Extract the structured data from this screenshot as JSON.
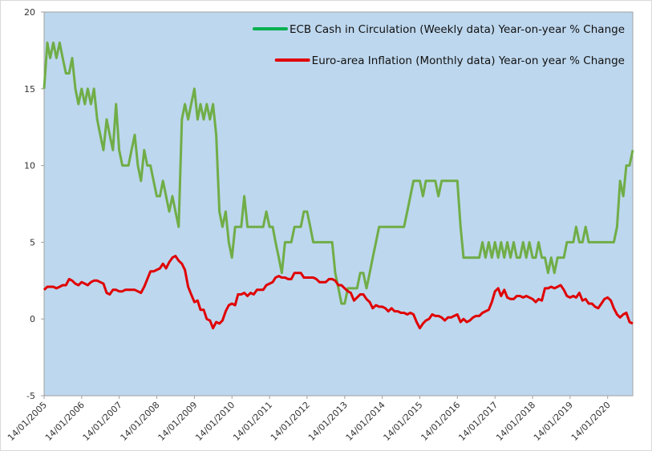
{
  "chart_data": {
    "type": "line",
    "x": [
      "2005-01",
      "2005-02",
      "2005-03",
      "2005-04",
      "2005-05",
      "2005-06",
      "2005-07",
      "2005-08",
      "2005-09",
      "2005-10",
      "2005-11",
      "2005-12",
      "2006-01",
      "2006-02",
      "2006-03",
      "2006-04",
      "2006-05",
      "2006-06",
      "2006-07",
      "2006-08",
      "2006-09",
      "2006-10",
      "2006-11",
      "2006-12",
      "2007-01",
      "2007-02",
      "2007-03",
      "2007-04",
      "2007-05",
      "2007-06",
      "2007-07",
      "2007-08",
      "2007-09",
      "2007-10",
      "2007-11",
      "2007-12",
      "2008-01",
      "2008-02",
      "2008-03",
      "2008-04",
      "2008-05",
      "2008-06",
      "2008-07",
      "2008-08",
      "2008-09",
      "2008-10",
      "2008-11",
      "2008-12",
      "2009-01",
      "2009-02",
      "2009-03",
      "2009-04",
      "2009-05",
      "2009-06",
      "2009-07",
      "2009-08",
      "2009-09",
      "2009-10",
      "2009-11",
      "2009-12",
      "2010-01",
      "2010-02",
      "2010-03",
      "2010-04",
      "2010-05",
      "2010-06",
      "2010-07",
      "2010-08",
      "2010-09",
      "2010-10",
      "2010-11",
      "2010-12",
      "2011-01",
      "2011-02",
      "2011-03",
      "2011-04",
      "2011-05",
      "2011-06",
      "2011-07",
      "2011-08",
      "2011-09",
      "2011-10",
      "2011-11",
      "2011-12",
      "2012-01",
      "2012-02",
      "2012-03",
      "2012-04",
      "2012-05",
      "2012-06",
      "2012-07",
      "2012-08",
      "2012-09",
      "2012-10",
      "2012-11",
      "2012-12",
      "2013-01",
      "2013-02",
      "2013-03",
      "2013-04",
      "2013-05",
      "2013-06",
      "2013-07",
      "2013-08",
      "2013-09",
      "2013-10",
      "2013-11",
      "2013-12",
      "2014-01",
      "2014-02",
      "2014-03",
      "2014-04",
      "2014-05",
      "2014-06",
      "2014-07",
      "2014-08",
      "2014-09",
      "2014-10",
      "2014-11",
      "2014-12",
      "2015-01",
      "2015-02",
      "2015-03",
      "2015-04",
      "2015-05",
      "2015-06",
      "2015-07",
      "2015-08",
      "2015-09",
      "2015-10",
      "2015-11",
      "2015-12",
      "2016-01",
      "2016-02",
      "2016-03",
      "2016-04",
      "2016-05",
      "2016-06",
      "2016-07",
      "2016-08",
      "2016-09",
      "2016-10",
      "2016-11",
      "2016-12",
      "2017-01",
      "2017-02",
      "2017-03",
      "2017-04",
      "2017-05",
      "2017-06",
      "2017-07",
      "2017-08",
      "2017-09",
      "2017-10",
      "2017-11",
      "2017-12",
      "2018-01",
      "2018-02",
      "2018-03",
      "2018-04",
      "2018-05",
      "2018-06",
      "2018-07",
      "2018-08",
      "2018-09",
      "2018-10",
      "2018-11",
      "2018-12",
      "2019-01",
      "2019-02",
      "2019-03",
      "2019-04",
      "2019-05",
      "2019-06",
      "2019-07",
      "2019-08",
      "2019-09",
      "2019-10",
      "2019-11",
      "2019-12",
      "2020-01",
      "2020-02",
      "2020-03",
      "2020-04",
      "2020-05",
      "2020-06",
      "2020-07",
      "2020-08",
      "2020-09"
    ],
    "series": [
      {
        "name": "ECB Cash in Circulation (Weekly data) Year-on-year % Change",
        "color": "#70ad47",
        "legend_color": "#00b050",
        "values": [
          15,
          18,
          17,
          18,
          17,
          18,
          17,
          16,
          16,
          17,
          15,
          14,
          15,
          14,
          15,
          14,
          15,
          13,
          12,
          11,
          13,
          12,
          11,
          14,
          11,
          10,
          10,
          10,
          11,
          12,
          10,
          9,
          11,
          10,
          10,
          9,
          8,
          8,
          9,
          8,
          7,
          8,
          7,
          6,
          13,
          14,
          13,
          14,
          15,
          13,
          14,
          13,
          14,
          13,
          14,
          12,
          7,
          6,
          7,
          5,
          4,
          6,
          6,
          6,
          8,
          6,
          6,
          6,
          6,
          6,
          6,
          7,
          6,
          6,
          5,
          4,
          3,
          5,
          5,
          5,
          6,
          6,
          6,
          7,
          7,
          6,
          5,
          5,
          5,
          5,
          5,
          5,
          5,
          3,
          2,
          1,
          1,
          2,
          2,
          2,
          2,
          3,
          3,
          2,
          3,
          4,
          5,
          6,
          6,
          6,
          6,
          6,
          6,
          6,
          6,
          6,
          7,
          8,
          9,
          9,
          9,
          8,
          9,
          9,
          9,
          9,
          8,
          9,
          9,
          9,
          9,
          9,
          9,
          6,
          4,
          4,
          4,
          4,
          4,
          4,
          5,
          4,
          5,
          4,
          5,
          4,
          5,
          4,
          5,
          4,
          5,
          4,
          4,
          5,
          4,
          5,
          4,
          4,
          5,
          4,
          4,
          3,
          4,
          3,
          4,
          4,
          4,
          5,
          5,
          5,
          6,
          5,
          5,
          6,
          5,
          5,
          5,
          5,
          5,
          5,
          5,
          5,
          5,
          6,
          9,
          8,
          10,
          10,
          11
        ]
      },
      {
        "name": "Euro-area Inflation (Monthly data) Year-on year % Change",
        "color": "#e00000",
        "legend_color": "#e00000",
        "values": [
          1.9,
          2.1,
          2.1,
          2.1,
          2.0,
          2.1,
          2.2,
          2.2,
          2.6,
          2.5,
          2.3,
          2.2,
          2.4,
          2.3,
          2.2,
          2.4,
          2.5,
          2.5,
          2.4,
          2.3,
          1.7,
          1.6,
          1.9,
          1.9,
          1.8,
          1.8,
          1.9,
          1.9,
          1.9,
          1.9,
          1.8,
          1.7,
          2.1,
          2.6,
          3.1,
          3.1,
          3.2,
          3.3,
          3.6,
          3.3,
          3.7,
          4.0,
          4.1,
          3.8,
          3.6,
          3.2,
          2.1,
          1.6,
          1.1,
          1.2,
          0.6,
          0.6,
          0.0,
          -0.1,
          -0.6,
          -0.2,
          -0.3,
          -0.1,
          0.5,
          0.9,
          1.0,
          0.9,
          1.6,
          1.6,
          1.7,
          1.5,
          1.7,
          1.6,
          1.9,
          1.9,
          1.9,
          2.2,
          2.3,
          2.4,
          2.7,
          2.8,
          2.7,
          2.7,
          2.6,
          2.6,
          3.0,
          3.0,
          3.0,
          2.7,
          2.7,
          2.7,
          2.7,
          2.6,
          2.4,
          2.4,
          2.4,
          2.6,
          2.6,
          2.5,
          2.2,
          2.2,
          2.0,
          1.8,
          1.7,
          1.2,
          1.4,
          1.6,
          1.6,
          1.3,
          1.1,
          0.7,
          0.9,
          0.8,
          0.8,
          0.7,
          0.5,
          0.7,
          0.5,
          0.5,
          0.4,
          0.4,
          0.3,
          0.4,
          0.3,
          -0.2,
          -0.6,
          -0.3,
          -0.1,
          0.0,
          0.3,
          0.2,
          0.2,
          0.1,
          -0.1,
          0.1,
          0.1,
          0.2,
          0.3,
          -0.2,
          0.0,
          -0.2,
          -0.1,
          0.1,
          0.2,
          0.2,
          0.4,
          0.5,
          0.6,
          1.1,
          1.8,
          2.0,
          1.5,
          1.9,
          1.4,
          1.3,
          1.3,
          1.5,
          1.5,
          1.4,
          1.5,
          1.4,
          1.3,
          1.1,
          1.3,
          1.2,
          2.0,
          2.0,
          2.1,
          2.0,
          2.1,
          2.2,
          1.9,
          1.5,
          1.4,
          1.5,
          1.4,
          1.7,
          1.2,
          1.3,
          1.0,
          1.0,
          0.8,
          0.7,
          1.0,
          1.3,
          1.4,
          1.2,
          0.7,
          0.3,
          0.1,
          0.3,
          0.4,
          -0.2,
          -0.3
        ]
      }
    ],
    "xlim": [
      "2005-01-14",
      "2020-09-14"
    ],
    "xticks": [
      {
        "value": "2005-01-14",
        "label": "14/01/2005"
      },
      {
        "value": "2006-01-14",
        "label": "14/01/2006"
      },
      {
        "value": "2007-01-14",
        "label": "14/01/2007"
      },
      {
        "value": "2008-01-14",
        "label": "14/01/2008"
      },
      {
        "value": "2009-01-14",
        "label": "14/01/2009"
      },
      {
        "value": "2010-01-14",
        "label": "14/01/2010"
      },
      {
        "value": "2011-01-14",
        "label": "14/01/2011"
      },
      {
        "value": "2012-01-14",
        "label": "14/01/2012"
      },
      {
        "value": "2013-01-14",
        "label": "14/01/2013"
      },
      {
        "value": "2014-01-14",
        "label": "14/01/2014"
      },
      {
        "value": "2015-01-14",
        "label": "14/01/2015"
      },
      {
        "value": "2016-01-14",
        "label": "14/01/2016"
      },
      {
        "value": "2017-01-14",
        "label": "14/01/2017"
      },
      {
        "value": "2018-01-14",
        "label": "14/01/2018"
      },
      {
        "value": "2019-01-14",
        "label": "14/01/2019"
      },
      {
        "value": "2020-01-14",
        "label": "14/01/2020"
      }
    ],
    "ylim": [
      -5,
      20
    ],
    "yticks": [
      -5,
      0,
      5,
      10,
      15,
      20
    ],
    "grid": false,
    "legend": "top-right",
    "background": "#bdd7ee"
  }
}
